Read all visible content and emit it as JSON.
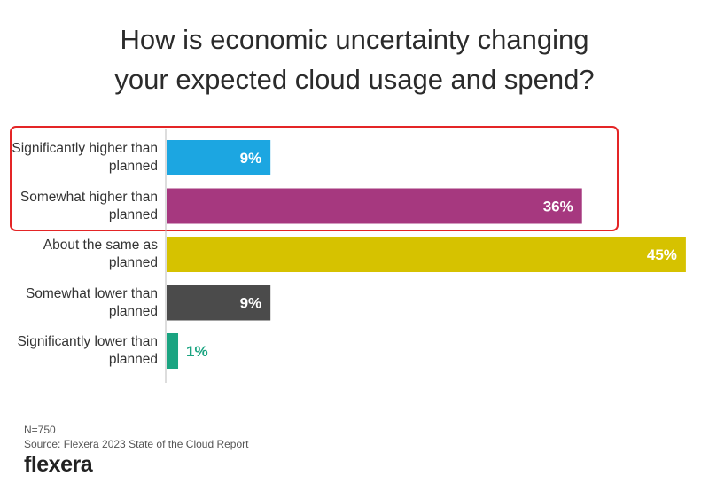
{
  "chart_data": {
    "type": "bar",
    "orientation": "horizontal",
    "title": "How is economic uncertainty changing your expected cloud usage and spend?",
    "categories": [
      "Significantly higher than planned",
      "Somewhat higher than planned",
      "About the same as planned",
      "Somewhat lower than planned",
      "Significantly lower than planned"
    ],
    "values": [
      9,
      36,
      45,
      9,
      1
    ],
    "value_labels": [
      "9%",
      "36%",
      "45%",
      "9%",
      "1%"
    ],
    "colors": [
      "#1ca6e1",
      "#a6387f",
      "#d6c200",
      "#4b4b4b",
      "#1aa481"
    ],
    "highlight": [
      0,
      1
    ],
    "note": "N=750",
    "source": "Source: Flexera 2023 State of the Cloud Report",
    "brand": "flexera"
  }
}
